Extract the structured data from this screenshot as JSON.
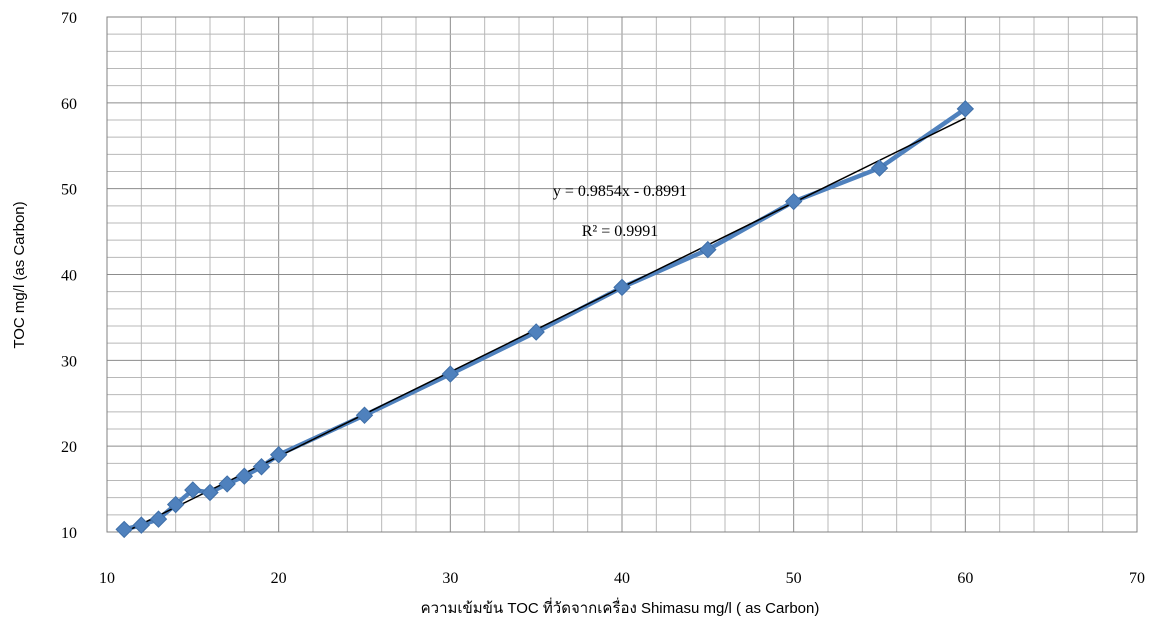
{
  "chart_data": {
    "type": "scatter",
    "title": "",
    "xlabel": "ความเข้มข้น TOC ที่วัดจากเครื่อง Shimasu mg/l ( as Carbon)",
    "ylabel": "TOC  mg/l  (as Carbon)",
    "xlim": [
      10,
      70
    ],
    "ylim": [
      10,
      70
    ],
    "xticks": [
      10,
      20,
      30,
      40,
      50,
      60,
      70
    ],
    "yticks": [
      10,
      20,
      30,
      40,
      50,
      60,
      70
    ],
    "minor_step": 2,
    "grid": true,
    "series": [
      {
        "color": "#4F81BD",
        "marker": "diamond",
        "x": [
          11,
          12,
          13,
          14,
          15,
          16,
          17,
          18,
          19,
          20,
          25,
          30,
          35,
          40,
          45,
          50,
          55,
          60
        ],
        "y": [
          10.3,
          10.8,
          11.5,
          13.2,
          14.9,
          14.6,
          15.6,
          16.5,
          17.6,
          19.0,
          23.6,
          28.4,
          33.3,
          38.5,
          42.9,
          48.5,
          52.4,
          59.3
        ]
      }
    ],
    "trendline": {
      "slope": 0.9854,
      "intercept": -0.8991,
      "x_range": [
        11,
        60
      ],
      "color": "#000000",
      "equation": "y = 0.9854x - 0.8991",
      "r_squared": "R² = 0.9991"
    }
  }
}
